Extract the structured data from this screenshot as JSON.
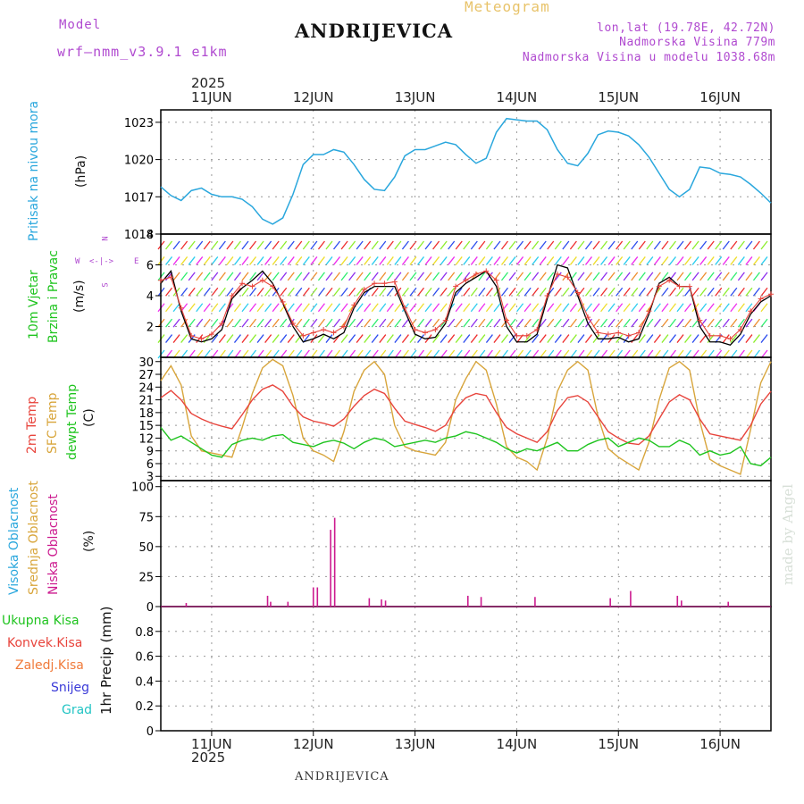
{
  "header": {
    "model_label": "Model",
    "model_name": "wrf–nmm_v3.9.1  e1km",
    "title": "ANDRIJEVICA",
    "meteogram": "Meteogram",
    "lonlat": "lon,lat (19.78E, 42.72N)",
    "altitude": "Nadmorska Visina 779m",
    "model_altitude": "Nadmorska Visina u modelu 1038.68m",
    "footer_title": "ANDRIJEVICA",
    "watermark": "made by Angel",
    "year_top": "2025",
    "year_bottom": "2025"
  },
  "colors": {
    "pressure": "#2aa7dd",
    "temp2m": "#e8443c",
    "sfc": "#d8a53b",
    "dewpt": "#1fc41f",
    "cloud": "#cc1a8f",
    "speed": "#000000",
    "gust": "#e8443c",
    "purple_text": "#b04ad0"
  },
  "chart_data": [
    {
      "type": "line",
      "panel": "pressure",
      "ylabel_left": "Pritisak na nivou mora",
      "unit": "(hPa)",
      "ylim": [
        1014,
        1024
      ],
      "yticks": [
        "1014",
        "1017",
        "1020",
        "1023"
      ],
      "x_days": [
        "11JUN",
        "12JUN",
        "13JUN",
        "14JUN",
        "15JUN",
        "16JUN"
      ],
      "x_range": [
        10.5,
        16.5
      ],
      "grid": true,
      "series": [
        {
          "x": [
            10.5,
            10.6,
            10.7,
            10.8,
            10.9,
            11.0,
            11.1,
            11.2,
            11.3,
            11.4,
            11.5,
            11.6,
            11.7,
            11.8,
            11.9,
            12.0,
            12.1,
            12.2,
            12.3,
            12.4,
            12.5,
            12.6,
            12.7,
            12.8,
            12.9,
            13.0,
            13.1,
            13.2,
            13.3,
            13.4,
            13.5,
            13.6,
            13.7,
            13.8,
            13.9,
            14.0,
            14.1,
            14.2,
            14.3,
            14.4,
            14.5,
            14.6,
            14.7,
            14.8,
            14.9,
            15.0,
            15.1,
            15.2,
            15.3,
            15.4,
            15.5,
            15.6,
            15.7,
            15.8,
            15.9,
            16.0,
            16.1,
            16.2,
            16.3,
            16.4,
            16.5
          ],
          "values": [
            1017.8,
            1017.1,
            1016.7,
            1017.5,
            1017.7,
            1017.2,
            1017.0,
            1017.0,
            1016.8,
            1016.2,
            1015.2,
            1014.8,
            1015.3,
            1017.2,
            1019.6,
            1020.4,
            1020.4,
            1020.8,
            1020.6,
            1019.6,
            1018.4,
            1017.6,
            1017.5,
            1018.6,
            1020.3,
            1020.8,
            1020.8,
            1021.1,
            1021.4,
            1021.2,
            1020.4,
            1019.7,
            1020.1,
            1022.2,
            1023.3,
            1023.2,
            1023.1,
            1023.1,
            1022.4,
            1020.8,
            1019.7,
            1019.5,
            1020.5,
            1022.0,
            1022.3,
            1022.2,
            1021.9,
            1021.2,
            1020.2,
            1018.9,
            1017.6,
            1017.0,
            1017.6,
            1019.4,
            1019.3,
            1018.9,
            1018.8,
            1018.6,
            1018.0,
            1017.3,
            1016.5
          ]
        }
      ]
    },
    {
      "type": "line",
      "panel": "wind",
      "ylabel_left": [
        "10m Vjetar",
        "Brzina i Pravac"
      ],
      "unit": "(m/s)",
      "ylim": [
        0,
        8
      ],
      "yticks": [
        "2",
        "4",
        "6",
        "8"
      ],
      "grid": true,
      "compass": [
        "N",
        "S",
        "W",
        "E"
      ],
      "series": [
        {
          "name": "speed",
          "x": [
            10.5,
            10.6,
            10.7,
            10.8,
            10.9,
            11.0,
            11.1,
            11.2,
            11.3,
            11.4,
            11.5,
            11.6,
            11.7,
            11.8,
            11.9,
            12.0,
            12.1,
            12.2,
            12.3,
            12.4,
            12.5,
            12.6,
            12.7,
            12.8,
            12.9,
            13.0,
            13.1,
            13.2,
            13.3,
            13.4,
            13.5,
            13.6,
            13.7,
            13.8,
            13.9,
            14.0,
            14.1,
            14.2,
            14.3,
            14.4,
            14.5,
            14.6,
            14.7,
            14.8,
            14.9,
            15.0,
            15.1,
            15.2,
            15.3,
            15.4,
            15.5,
            15.6,
            15.7,
            15.8,
            15.9,
            16.0,
            16.1,
            16.2,
            16.3,
            16.4,
            16.5
          ],
          "values": [
            4.8,
            5.6,
            3.0,
            1.2,
            1.0,
            1.2,
            1.8,
            3.8,
            4.5,
            5.0,
            5.6,
            4.8,
            3.5,
            2.0,
            1.0,
            1.2,
            1.5,
            1.2,
            1.6,
            3.2,
            4.2,
            4.6,
            4.6,
            4.6,
            3.0,
            1.5,
            1.2,
            1.3,
            2.2,
            4.2,
            4.8,
            5.2,
            5.6,
            4.6,
            2.0,
            1.0,
            1.0,
            1.5,
            3.8,
            6.0,
            5.8,
            4.0,
            2.2,
            1.2,
            1.2,
            1.3,
            1.0,
            1.2,
            2.8,
            4.8,
            5.2,
            4.6,
            4.6,
            2.0,
            1.0,
            1.0,
            0.8,
            1.5,
            2.8,
            3.6,
            4.0
          ]
        },
        {
          "name": "gust",
          "x": [
            10.5,
            10.6,
            10.7,
            10.8,
            10.9,
            11.0,
            11.1,
            11.2,
            11.3,
            11.4,
            11.5,
            11.6,
            11.7,
            11.8,
            11.9,
            12.0,
            12.1,
            12.2,
            12.3,
            12.4,
            12.5,
            12.6,
            12.7,
            12.8,
            12.9,
            13.0,
            13.1,
            13.2,
            13.3,
            13.4,
            13.5,
            13.6,
            13.7,
            13.8,
            13.9,
            14.0,
            14.1,
            14.2,
            14.3,
            14.4,
            14.5,
            14.6,
            14.7,
            14.8,
            14.9,
            15.0,
            15.1,
            15.2,
            15.3,
            15.4,
            15.5,
            15.6,
            15.7,
            15.8,
            15.9,
            16.0,
            16.1,
            16.2,
            16.3,
            16.4,
            16.5
          ],
          "values": [
            5.0,
            5.2,
            3.2,
            1.4,
            1.2,
            1.5,
            2.2,
            4.0,
            4.8,
            4.6,
            5.0,
            4.6,
            3.6,
            2.2,
            1.4,
            1.6,
            1.8,
            1.6,
            2.0,
            3.4,
            4.4,
            4.8,
            4.8,
            4.9,
            3.2,
            1.8,
            1.6,
            1.8,
            2.4,
            4.6,
            5.0,
            5.4,
            5.6,
            5.0,
            2.4,
            1.4,
            1.4,
            1.8,
            4.0,
            5.4,
            5.2,
            4.2,
            2.6,
            1.6,
            1.5,
            1.6,
            1.4,
            1.6,
            3.0,
            4.6,
            5.0,
            4.6,
            4.6,
            2.4,
            1.4,
            1.4,
            1.2,
            1.8,
            3.0,
            3.8,
            4.1
          ]
        }
      ]
    },
    {
      "type": "line",
      "panel": "temperature",
      "ylabel_left": [
        "2m Temp",
        "SFC Temp",
        "dewpt Temp"
      ],
      "unit": "(C)",
      "ylim": [
        2,
        31
      ],
      "yticks": [
        "3",
        "6",
        "9",
        "12",
        "15",
        "18",
        "21",
        "24",
        "27",
        "30"
      ],
      "grid": true,
      "series": [
        {
          "name": "2m Temp",
          "x": [
            10.5,
            10.6,
            10.7,
            10.8,
            10.9,
            11.0,
            11.1,
            11.2,
            11.3,
            11.4,
            11.5,
            11.6,
            11.7,
            11.8,
            11.9,
            12.0,
            12.1,
            12.2,
            12.3,
            12.4,
            12.5,
            12.6,
            12.7,
            12.8,
            12.9,
            13.0,
            13.1,
            13.2,
            13.3,
            13.4,
            13.5,
            13.6,
            13.7,
            13.8,
            13.9,
            14.0,
            14.1,
            14.2,
            14.3,
            14.4,
            14.5,
            14.6,
            14.7,
            14.8,
            14.9,
            15.0,
            15.1,
            15.2,
            15.3,
            15.4,
            15.5,
            15.6,
            15.7,
            15.8,
            15.9,
            16.0,
            16.1,
            16.2,
            16.3,
            16.4,
            16.5
          ],
          "values": [
            21.5,
            23.2,
            21.0,
            17.8,
            16.5,
            15.5,
            14.8,
            14.2,
            17.5,
            21.0,
            23.5,
            24.5,
            23.0,
            19.5,
            17.0,
            16.0,
            15.5,
            14.8,
            16.5,
            19.5,
            22.0,
            23.5,
            22.5,
            19.0,
            16.0,
            15.2,
            14.5,
            13.6,
            15.0,
            19.0,
            21.5,
            22.5,
            22.0,
            18.0,
            14.5,
            13.0,
            12.0,
            11.0,
            13.5,
            18.5,
            21.5,
            22.0,
            20.5,
            17.0,
            13.5,
            12.0,
            10.8,
            10.5,
            12.5,
            16.5,
            20.5,
            22.2,
            21.0,
            16.5,
            13.0,
            12.5,
            12.0,
            11.5,
            15.0,
            20.0,
            23.0
          ]
        },
        {
          "name": "SFC Temp",
          "x": [
            10.5,
            10.6,
            10.7,
            10.8,
            10.9,
            11.0,
            11.1,
            11.2,
            11.3,
            11.4,
            11.5,
            11.6,
            11.7,
            11.8,
            11.9,
            12.0,
            12.1,
            12.2,
            12.3,
            12.4,
            12.5,
            12.6,
            12.7,
            12.8,
            12.9,
            13.0,
            13.1,
            13.2,
            13.3,
            13.4,
            13.5,
            13.6,
            13.7,
            13.8,
            13.9,
            14.0,
            14.1,
            14.2,
            14.3,
            14.4,
            14.5,
            14.6,
            14.7,
            14.8,
            14.9,
            15.0,
            15.1,
            15.2,
            15.3,
            15.4,
            15.5,
            15.6,
            15.7,
            15.8,
            15.9,
            16.0,
            16.1,
            16.2,
            16.3,
            16.4,
            16.5
          ],
          "values": [
            25.5,
            29.0,
            24.5,
            12.5,
            9.0,
            8.5,
            8.0,
            7.5,
            14.5,
            22.5,
            28.5,
            30.5,
            29.0,
            22.0,
            12.0,
            9.0,
            8.0,
            6.5,
            13.5,
            23.0,
            28.0,
            30.0,
            27.0,
            15.0,
            10.0,
            9.0,
            8.5,
            8.0,
            11.0,
            21.0,
            26.0,
            30.0,
            28.0,
            20.0,
            10.0,
            7.5,
            6.5,
            4.5,
            12.0,
            23.0,
            28.0,
            30.0,
            28.0,
            17.0,
            9.5,
            7.5,
            6.0,
            4.5,
            11.0,
            21.0,
            28.5,
            30.0,
            28.0,
            16.0,
            7.0,
            5.5,
            4.5,
            3.5,
            14.0,
            25.0,
            30.0
          ]
        },
        {
          "name": "dewpt Temp",
          "x": [
            10.5,
            10.6,
            10.7,
            10.8,
            10.9,
            11.0,
            11.1,
            11.2,
            11.3,
            11.4,
            11.5,
            11.6,
            11.7,
            11.8,
            11.9,
            12.0,
            12.1,
            12.2,
            12.3,
            12.4,
            12.5,
            12.6,
            12.7,
            12.8,
            12.9,
            13.0,
            13.1,
            13.2,
            13.3,
            13.4,
            13.5,
            13.6,
            13.7,
            13.8,
            13.9,
            14.0,
            14.1,
            14.2,
            14.3,
            14.4,
            14.5,
            14.6,
            14.7,
            14.8,
            14.9,
            15.0,
            15.1,
            15.2,
            15.3,
            15.4,
            15.5,
            15.6,
            15.7,
            15.8,
            15.9,
            16.0,
            16.1,
            16.2,
            16.3,
            16.4,
            16.5
          ],
          "values": [
            14.5,
            11.5,
            12.5,
            11.0,
            9.5,
            8.0,
            7.5,
            10.5,
            11.5,
            12.0,
            11.5,
            12.5,
            12.8,
            11.0,
            10.5,
            10.0,
            11.0,
            11.5,
            10.8,
            9.5,
            11.0,
            12.0,
            11.5,
            10.0,
            10.5,
            11.0,
            11.5,
            11.0,
            12.0,
            12.5,
            13.5,
            13.0,
            12.0,
            11.0,
            9.5,
            8.5,
            9.5,
            9.0,
            10.0,
            11.0,
            9.0,
            9.0,
            10.5,
            11.5,
            12.0,
            10.0,
            11.0,
            12.0,
            11.5,
            10.0,
            10.0,
            11.5,
            10.5,
            8.0,
            9.0,
            8.0,
            8.5,
            10.0,
            6.0,
            5.5,
            7.5
          ]
        }
      ]
    },
    {
      "type": "bar",
      "panel": "cloud",
      "ylabel_left": [
        "Visoka Oblacnost",
        "Srednja Oblacnost",
        "Niska Oblacnost"
      ],
      "unit": "(%)",
      "ylim": [
        0,
        105
      ],
      "yticks": [
        "0",
        "25",
        "50",
        "75",
        "100"
      ],
      "grid": true,
      "x": [
        10.75,
        11.55,
        11.58,
        11.75,
        12.0,
        12.04,
        12.17,
        12.21,
        12.55,
        12.67,
        12.71,
        13.52,
        13.65,
        14.18,
        14.92,
        15.12,
        15.58,
        15.62,
        16.08
      ],
      "values": [
        3,
        9,
        4,
        4,
        16,
        16,
        64,
        74,
        7,
        6,
        5,
        9,
        8,
        8,
        7,
        13,
        9,
        5,
        4
      ]
    },
    {
      "type": "bar",
      "panel": "precip",
      "ylabel_left": [
        "Ukupna Kisa",
        "Konvek.Kisa",
        "Zaledj.Kisa",
        "Snijeg",
        "Grad"
      ],
      "unit": "1hr Precip (mm)",
      "ylim": [
        0,
        1.0
      ],
      "yticks": [
        "0",
        "0.2",
        "0.4",
        "0.6",
        "0.8"
      ],
      "grid": true,
      "values": []
    }
  ]
}
